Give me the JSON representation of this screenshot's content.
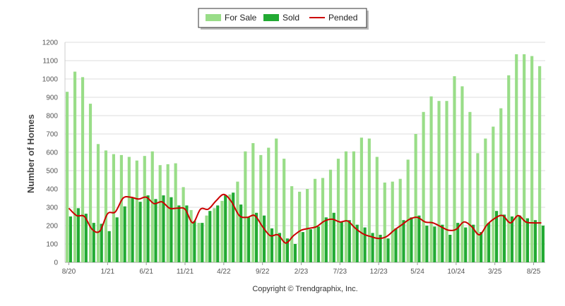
{
  "chart_data": {
    "type": "bar",
    "ylabel": "Number of Homes",
    "credit": "Copyright © Trendgraphix, Inc.",
    "ylim": [
      0,
      1200
    ],
    "y_ticks": [
      "0",
      "100",
      "200",
      "300",
      "400",
      "500",
      "600",
      "700",
      "800",
      "900",
      "1000",
      "1100",
      "1200"
    ],
    "x_labels": [
      "8/20",
      "1/21",
      "6/21",
      "11/21",
      "4/22",
      "9/22",
      "2/23",
      "7/23",
      "12/23",
      "5/24",
      "10/24",
      "3/25",
      "8/25"
    ],
    "x_label_month_index": [
      0,
      5,
      10,
      15,
      20,
      25,
      30,
      35,
      40,
      45,
      50,
      55,
      60
    ],
    "grid": true,
    "legend_position": "top-center",
    "colors": {
      "for_sale": "#99dd88",
      "sold": "#22aa33",
      "pended": "#cc0000",
      "grid": "#dddddd"
    },
    "series": [
      {
        "name": "For Sale",
        "kind": "bar",
        "values": [
          930,
          1040,
          1010,
          865,
          645,
          610,
          590,
          585,
          575,
          555,
          580,
          605,
          530,
          535,
          540,
          410,
          285,
          215,
          255,
          295,
          335,
          370,
          440,
          605,
          650,
          585,
          625,
          675,
          565,
          415,
          385,
          400,
          455,
          460,
          505,
          565,
          605,
          605,
          680,
          675,
          575,
          435,
          440,
          455,
          560,
          700,
          820,
          905,
          880,
          880,
          1015,
          960,
          820,
          595,
          675,
          740,
          840,
          1020,
          1135,
          1135,
          1125,
          1070
        ]
      },
      {
        "name": "Sold",
        "kind": "bar",
        "values": [
          250,
          295,
          265,
          215,
          210,
          170,
          245,
          305,
          350,
          330,
          365,
          345,
          365,
          355,
          310,
          310,
          225,
          215,
          280,
          310,
          365,
          380,
          315,
          245,
          270,
          255,
          185,
          160,
          130,
          100,
          165,
          180,
          195,
          245,
          270,
          220,
          230,
          205,
          190,
          160,
          150,
          130,
          185,
          230,
          245,
          255,
          200,
          195,
          205,
          150,
          215,
          190,
          205,
          165,
          215,
          280,
          260,
          250,
          255,
          240,
          230,
          200
        ]
      },
      {
        "name": "Pended",
        "kind": "line",
        "values": [
          295,
          255,
          250,
          180,
          170,
          265,
          275,
          350,
          355,
          345,
          355,
          320,
          330,
          295,
          295,
          290,
          215,
          290,
          290,
          335,
          370,
          330,
          255,
          245,
          255,
          195,
          145,
          150,
          105,
          145,
          175,
          185,
          195,
          225,
          235,
          220,
          225,
          185,
          155,
          140,
          130,
          140,
          175,
          205,
          235,
          245,
          220,
          215,
          195,
          175,
          180,
          220,
          195,
          150,
          205,
          240,
          255,
          215,
          255,
          220,
          215,
          215
        ]
      }
    ]
  }
}
